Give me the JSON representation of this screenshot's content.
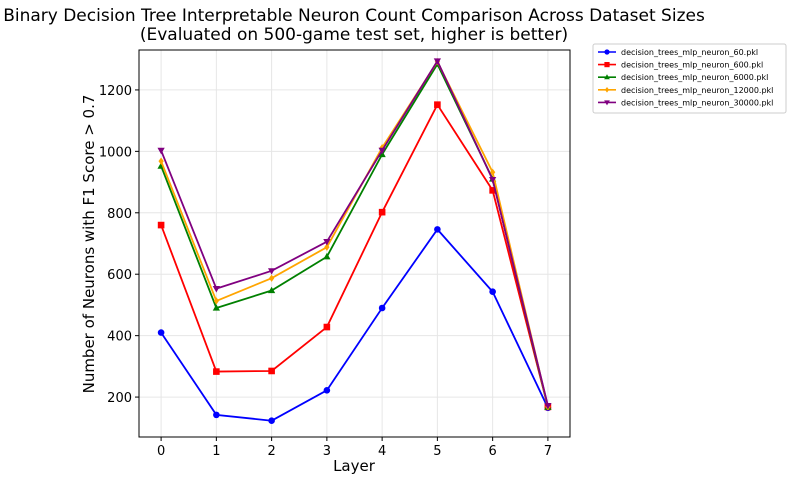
{
  "chart_data": {
    "type": "line",
    "title": "Binary Decision Tree Interpretable Neuron Count Comparison Across Dataset Sizes",
    "subtitle": "(Evaluated on 500-game test set, higher is better)",
    "xlabel": "Layer",
    "ylabel": "Number of Neurons with F1 Score > 0.7",
    "x": [
      0,
      1,
      2,
      3,
      4,
      5,
      6,
      7
    ],
    "xlim": [
      -0.4,
      7.4
    ],
    "ylim": [
      70,
      1330
    ],
    "xticks": [
      0,
      1,
      2,
      3,
      4,
      5,
      6,
      7
    ],
    "yticks": [
      200,
      400,
      600,
      800,
      1000,
      1200
    ],
    "grid": true,
    "legend_position": "outside-right-top",
    "series": [
      {
        "name": "decision_trees_mlp_neuron_60.pkl",
        "color": "#0000ff",
        "marker": "circle",
        "values": [
          410,
          142,
          123,
          222,
          490,
          746,
          543,
          165
        ]
      },
      {
        "name": "decision_trees_mlp_neuron_600.pkl",
        "color": "#ff0000",
        "marker": "square",
        "values": [
          760,
          283,
          285,
          428,
          802,
          1152,
          873,
          168
        ]
      },
      {
        "name": "decision_trees_mlp_neuron_6000.pkl",
        "color": "#008000",
        "marker": "triangle-up",
        "values": [
          952,
          490,
          547,
          657,
          990,
          1284,
          910,
          167
        ]
      },
      {
        "name": "decision_trees_mlp_neuron_12000.pkl",
        "color": "#ffa500",
        "marker": "diamond",
        "values": [
          968,
          513,
          587,
          688,
          1012,
          1292,
          932,
          168
        ]
      },
      {
        "name": "decision_trees_mlp_neuron_30000.pkl",
        "color": "#800080",
        "marker": "triangle-down",
        "values": [
          1003,
          553,
          611,
          706,
          1003,
          1294,
          908,
          172
        ]
      }
    ]
  }
}
